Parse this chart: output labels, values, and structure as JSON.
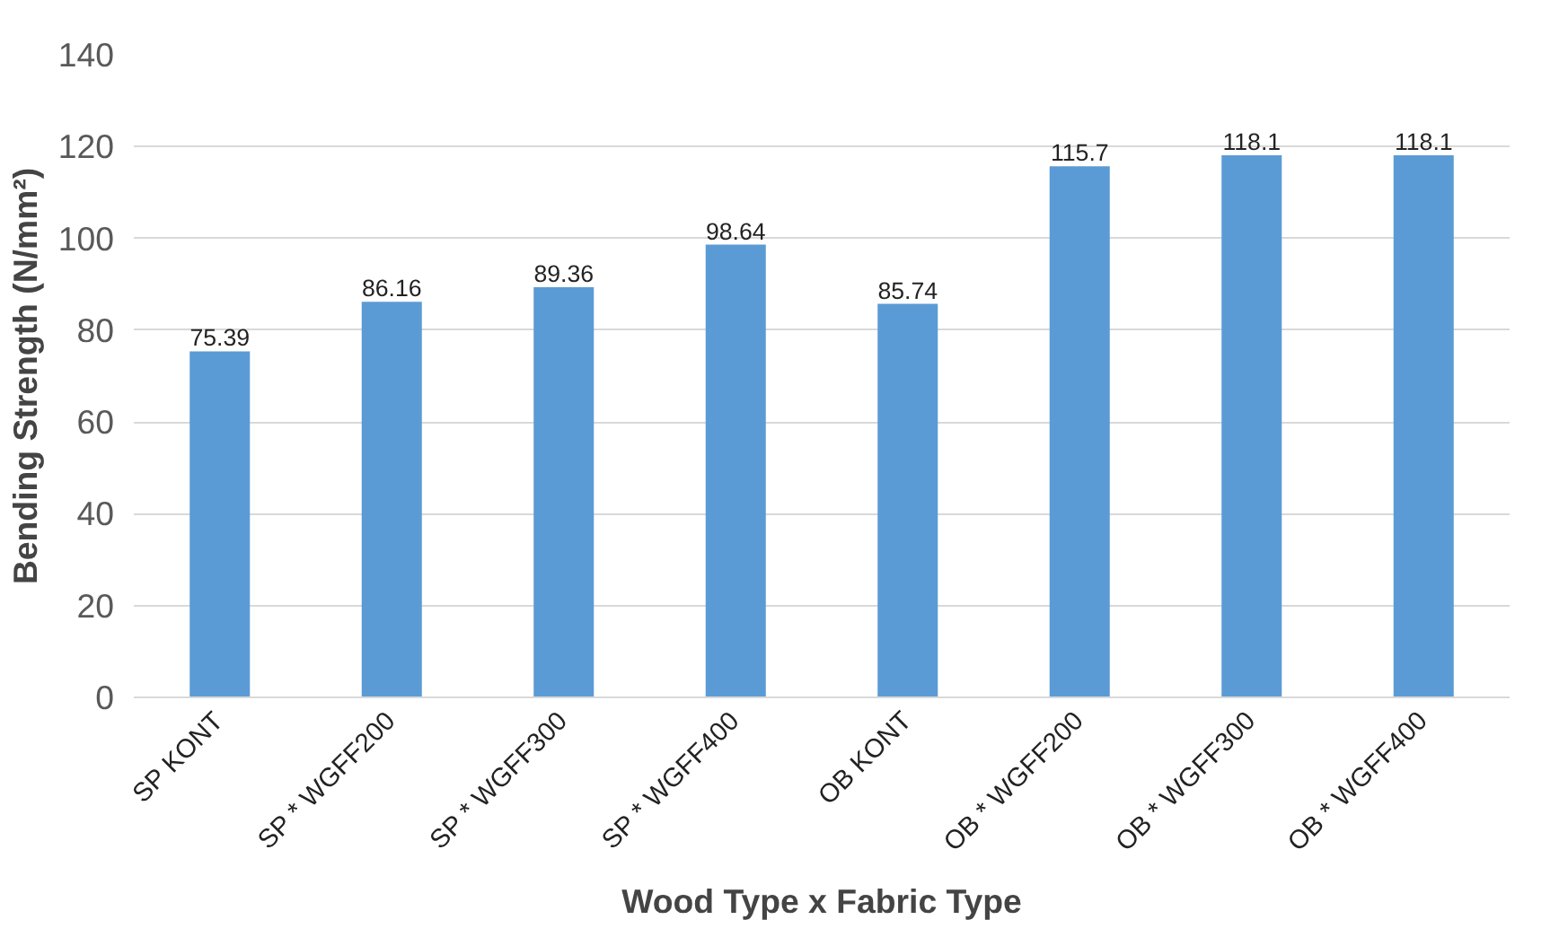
{
  "chart_data": {
    "type": "bar",
    "xlabel": "Wood Type x Fabric Type",
    "ylabel": "Bending Strength (N/mm²)",
    "categories": [
      "SP KONT",
      "SP * WGFF200",
      "SP * WGFF300",
      "SP * WGFF400",
      "OB KONT",
      "OB * WGFF200",
      "OB * WGFF300",
      "OB * WGFF400"
    ],
    "values": [
      75.39,
      86.16,
      89.36,
      98.64,
      85.74,
      115.7,
      118.1,
      118.1
    ],
    "color": "#5b9bd5",
    "ylim": [
      0,
      140
    ],
    "yticks": [
      0,
      20,
      40,
      60,
      80,
      100,
      120,
      140
    ],
    "grid": "y",
    "data_labels": true
  }
}
